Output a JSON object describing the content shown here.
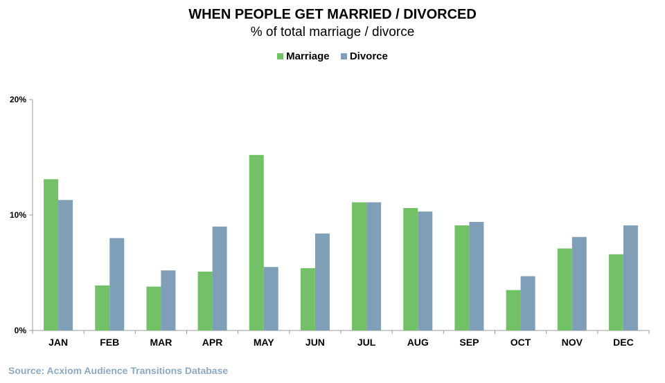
{
  "chart_data": {
    "type": "bar",
    "title": "WHEN PEOPLE  GET MARRIED / DIVORCED",
    "subtitle": "% of total marriage  / divorce",
    "categories": [
      "JAN",
      "FEB",
      "MAR",
      "APR",
      "MAY",
      "JUN",
      "JUL",
      "AUG",
      "SEP",
      "OCT",
      "NOV",
      "DEC"
    ],
    "series": [
      {
        "name": "Marriage",
        "color": "#72c166",
        "values": [
          13.1,
          3.9,
          3.8,
          5.1,
          15.2,
          5.4,
          11.1,
          10.6,
          9.1,
          3.5,
          7.1,
          6.6
        ]
      },
      {
        "name": "Divorce",
        "color": "#7f9fb8",
        "values": [
          11.3,
          8.0,
          5.2,
          9.0,
          5.5,
          8.4,
          11.1,
          10.3,
          9.4,
          4.7,
          8.1,
          9.1
        ]
      }
    ],
    "yticks": [
      "0%",
      "10%",
      "20%"
    ],
    "ylim": [
      0,
      20
    ],
    "legend_position": "top-center",
    "grid": false
  },
  "source": "Source: Acxiom Audience Transitions Database"
}
